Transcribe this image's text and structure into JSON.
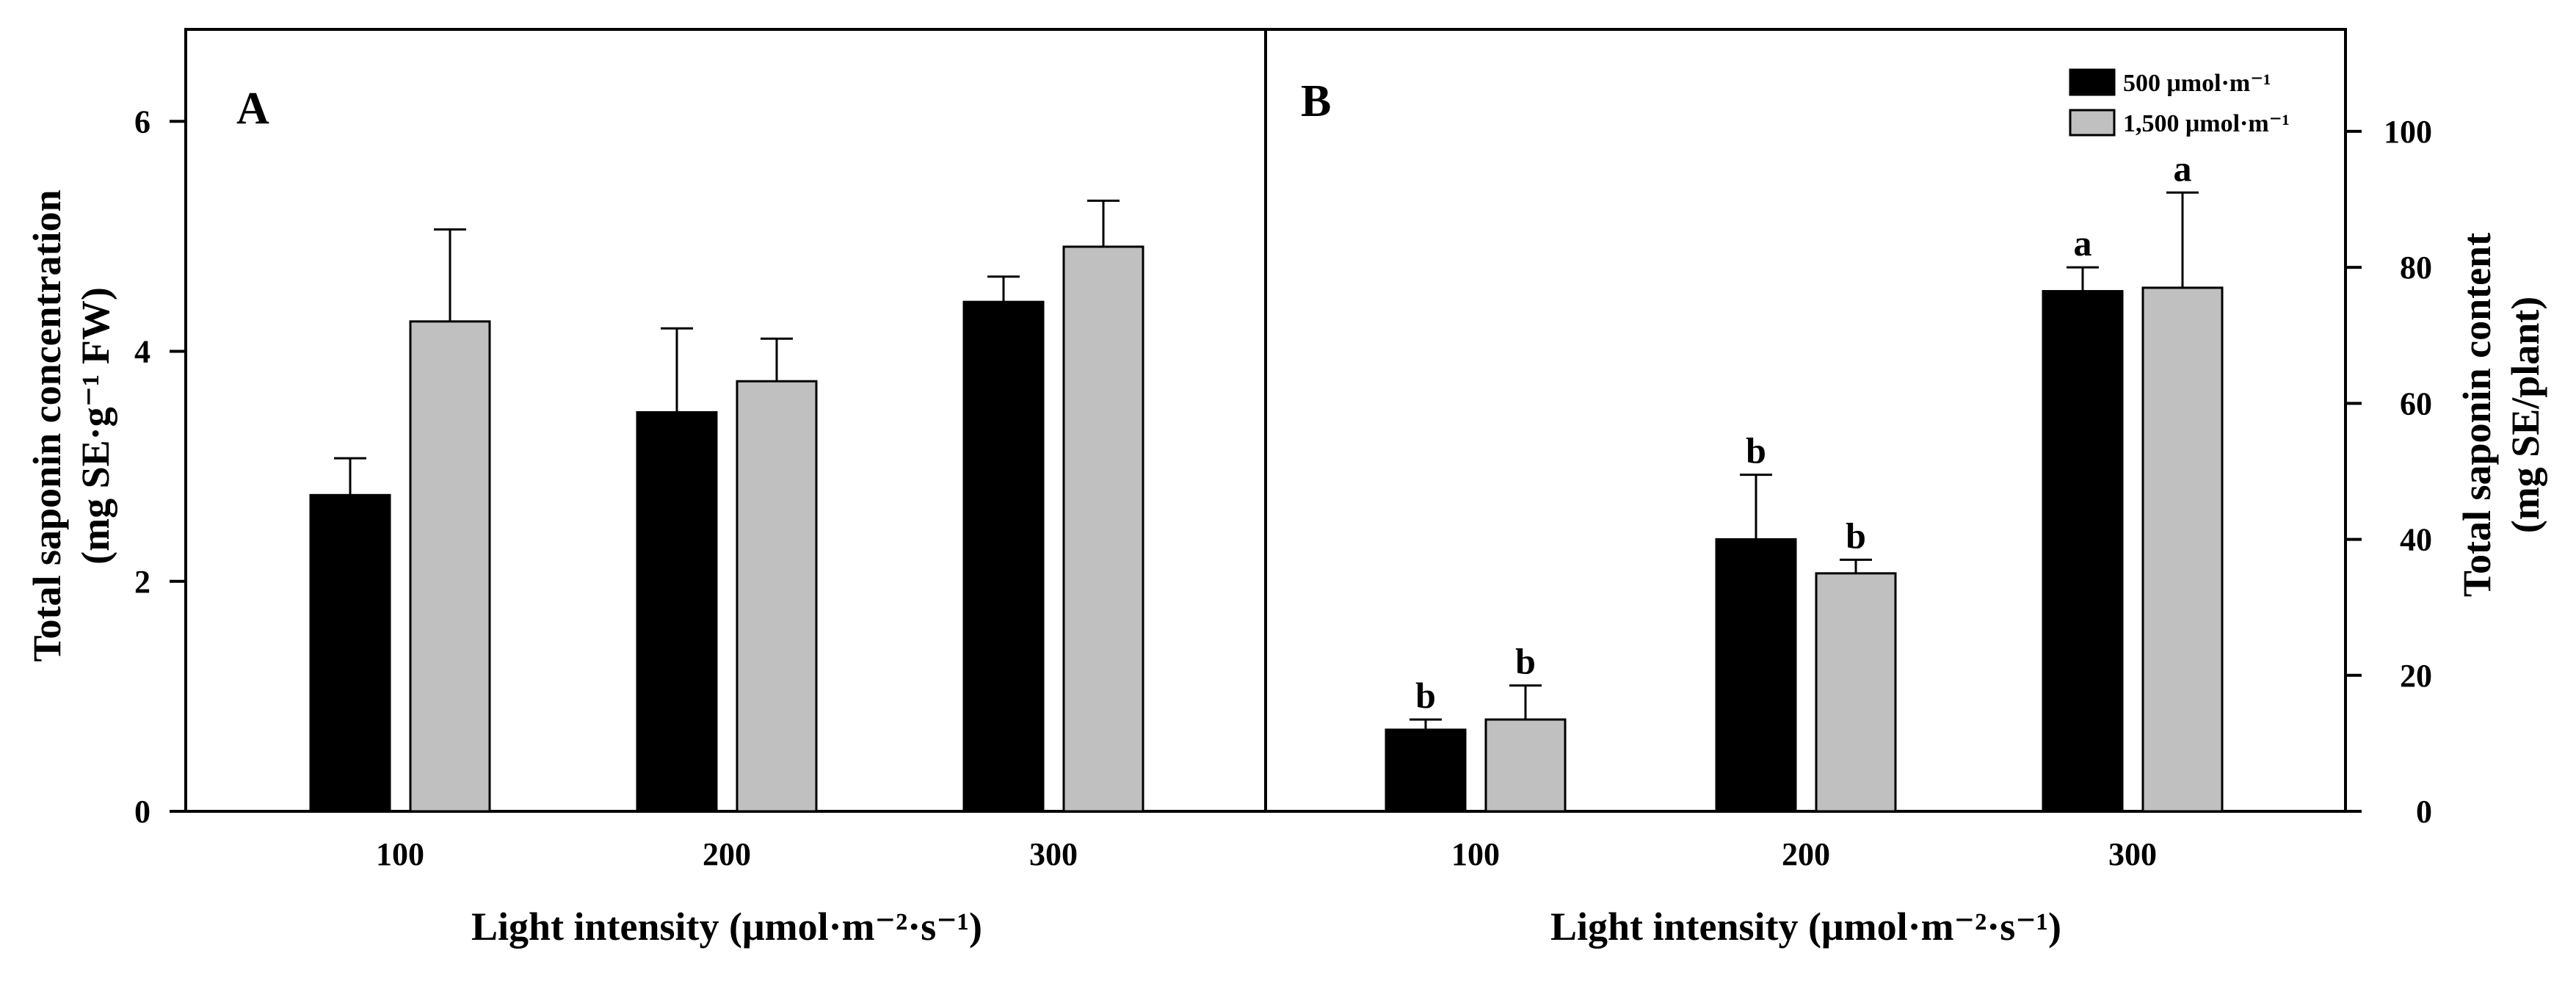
{
  "chart_data": [
    {
      "panel": "A",
      "type": "bar",
      "categories": [
        "100",
        "200",
        "300"
      ],
      "series": [
        {
          "name": "500 μmol·m⁻¹",
          "values": [
            2.75,
            3.47,
            4.43
          ],
          "errors": [
            0.32,
            0.73,
            0.22
          ],
          "color": "#000000"
        },
        {
          "name": "1,500 μmol·m⁻¹",
          "values": [
            4.26,
            3.74,
            4.91
          ],
          "errors": [
            0.8,
            0.37,
            0.4
          ],
          "color": "#c0c0c0"
        }
      ],
      "ylim": [
        0,
        6.8
      ],
      "yticks": [
        "0",
        "2",
        "4",
        "6"
      ],
      "ytick_values": [
        0,
        2,
        4,
        6
      ],
      "ylabel": [
        "Total saponin concentration",
        "(mg SE·g⁻¹ FW)"
      ],
      "xlabel": "Light intensity (μmol·m⁻²·s⁻¹)",
      "letters": [
        [
          "",
          "",
          ""
        ],
        [
          "",
          "",
          ""
        ]
      ]
    },
    {
      "panel": "B",
      "type": "bar",
      "categories": [
        "100",
        "200",
        "300"
      ],
      "series": [
        {
          "name": "500 μmol·m⁻¹",
          "values": [
            12,
            40,
            76.5
          ],
          "errors": [
            1.5,
            9.5,
            3.5
          ],
          "color": "#000000"
        },
        {
          "name": "1,500 μmol·m⁻¹",
          "values": [
            13.5,
            35,
            77
          ],
          "errors": [
            5,
            2,
            14
          ],
          "color": "#c0c0c0"
        }
      ],
      "ylim": [
        0,
        115
      ],
      "yticks": [
        "0",
        "20",
        "40",
        "60",
        "80",
        "100"
      ],
      "ytick_values": [
        0,
        20,
        40,
        60,
        80,
        100
      ],
      "ylabel": [
        "Total saponin content",
        "(mg SE/plant)"
      ],
      "xlabel": "Light intensity (μmol·m⁻²·s⁻¹)",
      "letters": [
        [
          "b",
          "b",
          "a"
        ],
        [
          "b",
          "b",
          "a"
        ]
      ],
      "legend_position": "top-right"
    }
  ],
  "legend": {
    "items": [
      {
        "label": "500 μmol·m⁻¹",
        "color": "#000000"
      },
      {
        "label": "1,500 μmol·m⁻¹",
        "color": "#c0c0c0"
      }
    ]
  }
}
